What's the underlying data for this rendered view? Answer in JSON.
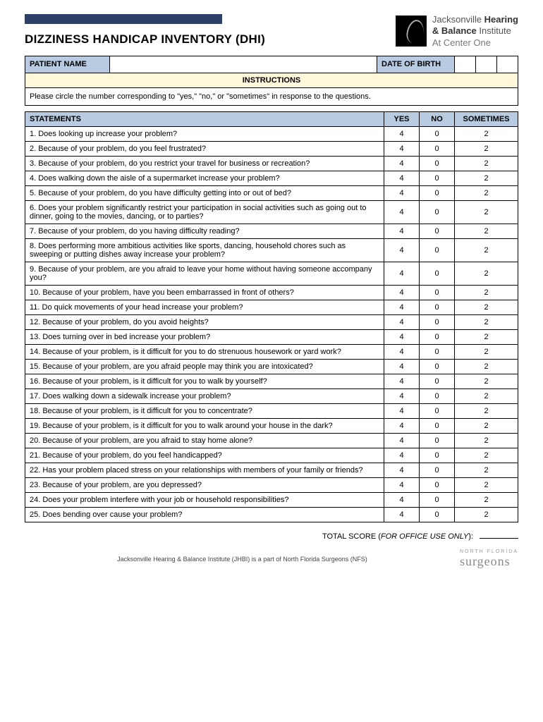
{
  "header": {
    "title": "DIZZINESS HANDICAP INVENTORY (DHI)",
    "logo_line1a": "Jacksonville ",
    "logo_line1b": "Hearing",
    "logo_line2a": "& Balance",
    "logo_line2b": " Institute",
    "logo_line3": "At Center One"
  },
  "labels": {
    "patient_name": "PATIENT NAME",
    "date_of_birth": "DATE OF BIRTH",
    "instructions": "INSTRUCTIONS",
    "instructions_text": "Please circle the number corresponding to \"yes,\" \"no,\" or \"sometimes\" in response to the questions.",
    "statements": "STATEMENTS",
    "yes": "YES",
    "no": "NO",
    "sometimes": "SOMETIMES",
    "total_score": "TOTAL SCORE (",
    "office_use": "FOR OFFICE USE ONLY",
    "total_close": "):"
  },
  "answer_values": {
    "yes": "4",
    "no": "0",
    "sometimes": "2"
  },
  "statements": [
    "1.  Does looking up increase your problem?",
    "2.  Because of your problem, do you feel frustrated?",
    "3.  Because of your problem, do you restrict your travel for business or recreation?",
    "4.  Does walking down the aisle of a supermarket increase your problem?",
    "5.  Because of your problem, do you have difficulty getting into or out of bed?",
    "6.  Does your problem significantly restrict your participation in social activities such as going out to dinner, going to the movies, dancing, or to parties?",
    "7.  Because of your problem, do you having difficulty reading?",
    "8.  Does performing more ambitious activities like sports, dancing, household chores such as sweeping or putting dishes away increase your problem?",
    "9.  Because of your problem, are you afraid to leave your home without having someone accompany you?",
    "10.  Because of your problem, have you been embarrassed in front of others?",
    "11.  Do quick movements of your head increase your problem?",
    "12.  Because of your problem, do you avoid heights?",
    "13.  Does turning over in bed increase your problem?",
    "14.  Because of your problem, is it difficult for you to do strenuous housework or yard work?",
    "15.  Because of your problem, are you afraid people may think you are intoxicated?",
    "16.  Because of your problem, is it difficult for you to walk by yourself?",
    "17.  Does walking down a sidewalk increase your problem?",
    "18.  Because of your problem, is it difficult for you to concentrate?",
    "19.  Because of your problem, is it difficult for you to walk around your house in the dark?",
    "20.  Because of your problem, are you afraid to stay home alone?",
    "21.  Because of your problem, do you feel handicapped?",
    "22.  Has your problem placed stress on your relationships with members of your family or friends?",
    "23.  Because of your problem, are you depressed?",
    "24.  Does your problem interfere with your job or household responsibilities?",
    "25.  Does bending over cause your problem?"
  ],
  "footer": {
    "text": "Jacksonville Hearing & Balance Institute (JHBI) is a part of North Florida Surgeons (NFS)",
    "surgeons_top": "NORTH FLORIDA",
    "surgeons": "surgeons"
  },
  "colors": {
    "blue_bar": "#2d4168",
    "header_blue": "#b8cbe0",
    "header_cream": "#fff7da"
  }
}
